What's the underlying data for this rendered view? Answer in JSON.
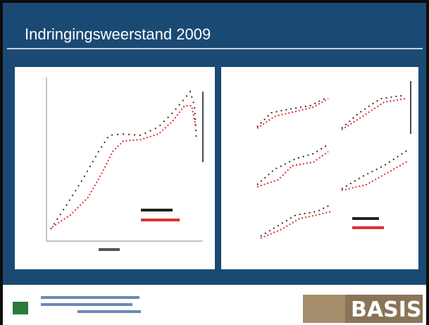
{
  "header": {
    "title": "Indringingsweerstand 2009"
  },
  "footer": {
    "logo_text": "BASIS"
  }
}
